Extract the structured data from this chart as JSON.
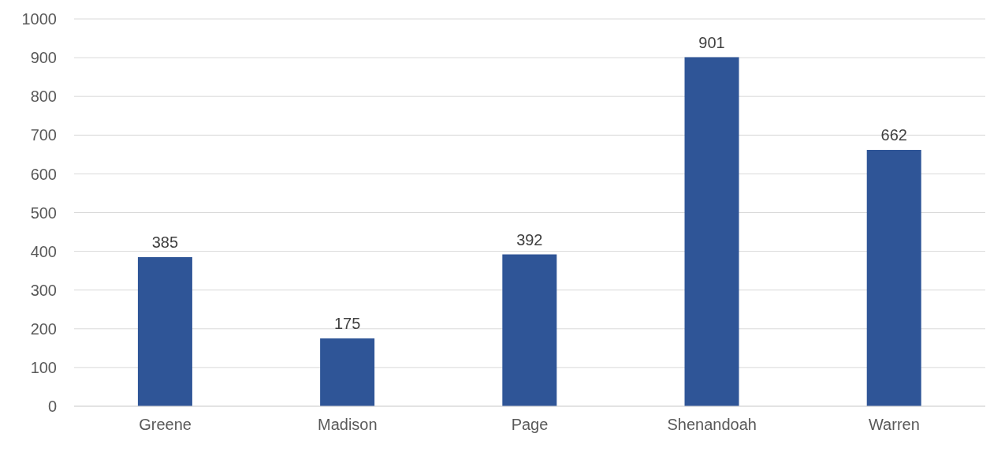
{
  "chart_data": {
    "type": "bar",
    "categories": [
      "Greene",
      "Madison",
      "Page",
      "Shenandoah",
      "Warren"
    ],
    "values": [
      385,
      175,
      392,
      901,
      662
    ],
    "color": "#2f5597",
    "ylim": [
      0,
      1000
    ],
    "yticks": [
      0,
      100,
      200,
      300,
      400,
      500,
      600,
      700,
      800,
      900,
      1000
    ],
    "grid": "y",
    "data_labels": true
  }
}
